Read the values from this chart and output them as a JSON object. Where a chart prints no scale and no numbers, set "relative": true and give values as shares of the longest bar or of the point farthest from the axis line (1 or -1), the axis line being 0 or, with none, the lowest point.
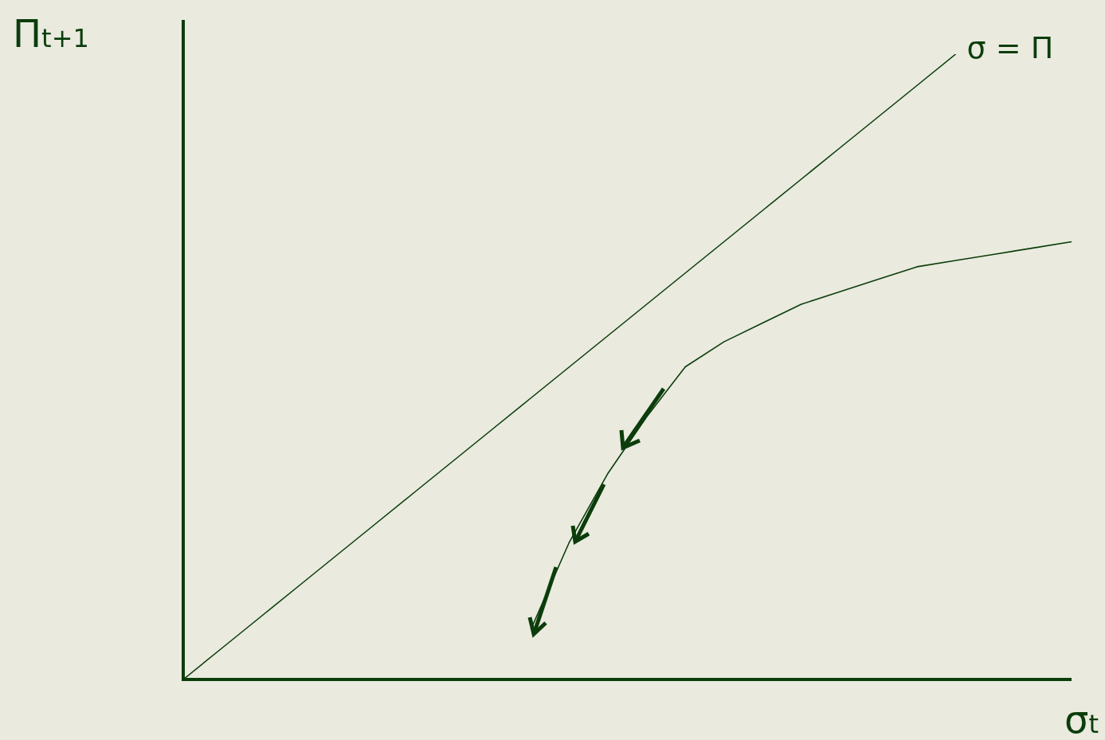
{
  "chart_data": {
    "type": "line",
    "xlabel": "σ$_{t}$",
    "ylabel": "Π$_{t+1}$",
    "relative": true,
    "marker": "none",
    "categories": [
      null,
      null,
      null,
      null,
      null,
      null,
      null,
      null,
      null,
      null,
      null,
      null,
      null,
      null,
      null,
      null,
      null,
      null,
      null,
      null,
      null,
      null,
      null,
      null
    ],
    "series": [
      {
        "name": "σ = Π",
        "color": "#0b3d0b",
        "values": [
          0,
          0.05,
          0.1,
          0.15,
          0.2,
          0.25,
          0.3,
          0.35,
          0.4,
          0.45,
          0.5,
          0.55,
          0.6,
          0.65,
          0.7,
          0.75,
          0.8,
          0.85,
          0.9,
          0.95,
          1.0,
          null,
          null,
          null
        ]
      },
      {
        "color": "#0b3d0b",
        "values": [
          null,
          null,
          null,
          null,
          null,
          null,
          null,
          null,
          null,
          0.08,
          0.22,
          0.33,
          0.42,
          0.5,
          0.54,
          0.57,
          0.6,
          0.62,
          0.64,
          0.66,
          0.67,
          0.68,
          0.69,
          0.7
        ]
      }
    ]
  }
}
